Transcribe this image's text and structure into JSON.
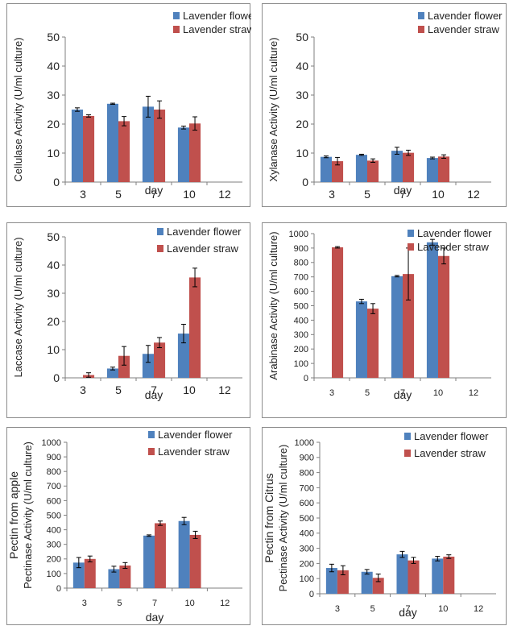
{
  "legend": {
    "flower": "Lavender flower",
    "straw": "Lavender straw"
  },
  "colors": {
    "flower": "#4F81BD",
    "straw": "#C0504D",
    "axis": "#7f7f7f"
  },
  "chart_data": [
    {
      "type": "bar",
      "categories": [
        "3",
        "5",
        "7",
        "10",
        "12"
      ],
      "xlabel": "day",
      "ylabel": "Cellulase Activity (U/ml culture)",
      "ylim": [
        0,
        50
      ],
      "yticks": [
        0,
        10,
        20,
        30,
        40,
        50
      ],
      "legend_position": "top-right",
      "series": [
        {
          "name": "Lavender flower",
          "values": [
            25,
            27,
            26,
            18.8,
            0
          ],
          "errors": [
            0.6,
            0.2,
            3.6,
            0.5,
            0
          ]
        },
        {
          "name": "Lavender straw",
          "values": [
            22.8,
            21,
            25,
            20.2,
            0
          ],
          "errors": [
            0.4,
            1.6,
            3,
            2.3,
            0
          ]
        }
      ]
    },
    {
      "type": "bar",
      "categories": [
        "3",
        "5",
        "7",
        "10",
        "12"
      ],
      "xlabel": "day",
      "ylabel": "Xylanase Activity (U/ml culture)",
      "ylim": [
        0,
        50
      ],
      "yticks": [
        0,
        10,
        20,
        30,
        40,
        50
      ],
      "legend_position": "top-right",
      "series": [
        {
          "name": "Lavender flower",
          "values": [
            8.7,
            9.4,
            10.8,
            8.3,
            0
          ],
          "errors": [
            0.3,
            0.2,
            1.2,
            0.3,
            0
          ]
        },
        {
          "name": "Lavender straw",
          "values": [
            7.2,
            7.4,
            10.1,
            8.8,
            0
          ],
          "errors": [
            1.3,
            0.6,
            0.9,
            0.6,
            0
          ]
        }
      ]
    },
    {
      "type": "bar",
      "categories": [
        "3",
        "5",
        "7",
        "10",
        "12"
      ],
      "xlabel": "day",
      "ylabel": "Laccase Activity (U/ml culture)",
      "ylim": [
        0,
        50
      ],
      "yticks": [
        0,
        10,
        20,
        30,
        40,
        50
      ],
      "legend_position": "top-right",
      "series": [
        {
          "name": "Lavender flower",
          "values": [
            0,
            3.3,
            8.5,
            15.7,
            0
          ],
          "errors": [
            0,
            0.5,
            3,
            3.3,
            0
          ]
        },
        {
          "name": "Lavender straw",
          "values": [
            1,
            7.8,
            12.5,
            35.6,
            0
          ],
          "errors": [
            0.8,
            3.3,
            1.8,
            3.3,
            0
          ]
        }
      ]
    },
    {
      "type": "bar",
      "categories": [
        "3",
        "5",
        "7",
        "10",
        "12"
      ],
      "xlabel": "day",
      "ylabel": "Arabinase Activity (U/ml culture)",
      "ylim": [
        0,
        1000
      ],
      "yticks": [
        0,
        100,
        200,
        300,
        400,
        500,
        600,
        700,
        800,
        900,
        1000
      ],
      "legend_position": "top-right",
      "series": [
        {
          "name": "Lavender flower",
          "values": [
            0,
            530,
            705,
            940,
            0
          ],
          "errors": [
            0,
            15,
            5,
            20,
            0
          ]
        },
        {
          "name": "Lavender straw",
          "values": [
            905,
            480,
            720,
            845,
            0
          ],
          "errors": [
            5,
            35,
            180,
            55,
            0
          ]
        }
      ]
    },
    {
      "type": "bar",
      "categories": [
        "3",
        "5",
        "7",
        "10",
        "12"
      ],
      "xlabel": "day",
      "ylabel": "Pectinase Activity (U/ml culture)",
      "ylabel2": "Pectin from apple",
      "ylim": [
        0,
        1000
      ],
      "yticks": [
        0,
        100,
        200,
        300,
        400,
        500,
        600,
        700,
        800,
        900,
        1000
      ],
      "legend_position": "top-right",
      "series": [
        {
          "name": "Lavender flower",
          "values": [
            175,
            130,
            360,
            460,
            0
          ],
          "errors": [
            35,
            20,
            5,
            25,
            0
          ]
        },
        {
          "name": "Lavender straw",
          "values": [
            200,
            155,
            445,
            365,
            0
          ],
          "errors": [
            20,
            20,
            15,
            25,
            0
          ]
        }
      ]
    },
    {
      "type": "bar",
      "categories": [
        "3",
        "5",
        "7",
        "10",
        "12"
      ],
      "xlabel": "day",
      "ylabel": "Pectinase Activity (U/ml culture)",
      "ylabel2": "Pectin from Citrus",
      "ylim": [
        0,
        1000
      ],
      "yticks": [
        0,
        100,
        200,
        300,
        400,
        500,
        600,
        700,
        800,
        900,
        1000
      ],
      "legend_position": "top-right",
      "series": [
        {
          "name": "Lavender flower",
          "values": [
            170,
            145,
            260,
            232,
            0
          ],
          "errors": [
            25,
            15,
            20,
            15,
            0
          ]
        },
        {
          "name": "Lavender straw",
          "values": [
            155,
            105,
            220,
            245,
            0
          ],
          "errors": [
            30,
            25,
            20,
            12,
            0
          ]
        }
      ]
    }
  ]
}
